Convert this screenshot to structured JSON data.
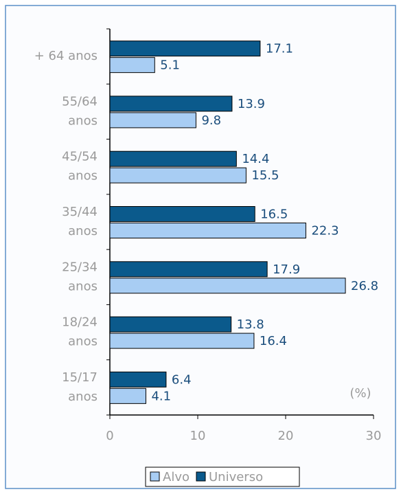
{
  "chart_data": {
    "type": "hbar",
    "categories": [
      [
        "+ 64 anos"
      ],
      [
        "55/64",
        "anos"
      ],
      [
        "45/54",
        "anos"
      ],
      [
        "35/44",
        "anos"
      ],
      [
        "25/34",
        "anos"
      ],
      [
        "18/24",
        "anos"
      ],
      [
        "15/17",
        "anos"
      ]
    ],
    "series": [
      {
        "name": "Alvo",
        "color": "#a8cdf3",
        "values": [
          5.1,
          9.8,
          15.5,
          22.3,
          26.8,
          16.4,
          4.1
        ]
      },
      {
        "name": "Universo",
        "color": "#0b5a8c",
        "values": [
          17.1,
          13.9,
          14.4,
          16.5,
          17.9,
          13.8,
          6.4
        ]
      }
    ],
    "xlim": [
      0,
      30
    ],
    "xticks": [
      0,
      10,
      20,
      30
    ],
    "annotation": "(%)",
    "legend": "bottom"
  }
}
